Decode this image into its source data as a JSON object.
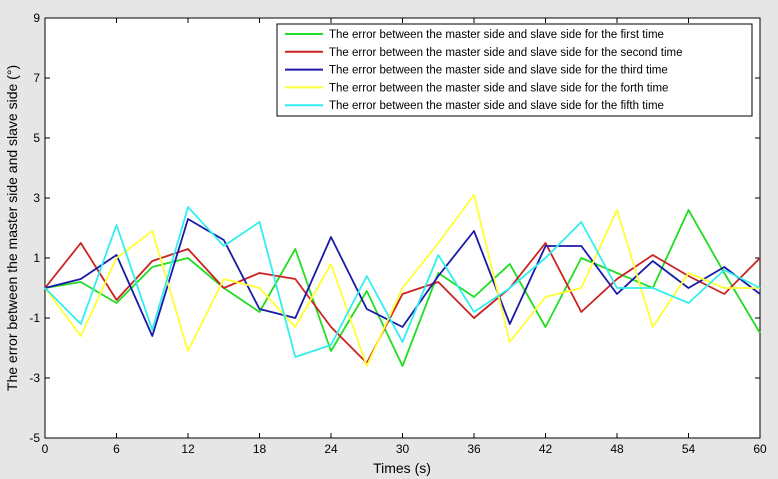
{
  "chart_data": {
    "type": "line",
    "xlabel": "Times (s)",
    "ylabel": "The error between the master side and slave side (°)",
    "xlim": [
      0,
      60
    ],
    "ylim": [
      -5,
      9
    ],
    "xticks": [
      0,
      6,
      12,
      18,
      24,
      30,
      36,
      42,
      48,
      54,
      60
    ],
    "yticks": [
      -5,
      -3,
      -1,
      1,
      3,
      5,
      7,
      9
    ],
    "grid": false,
    "legend_position": "top-right",
    "x": [
      0,
      3,
      6,
      9,
      12,
      15,
      18,
      21,
      24,
      27,
      30,
      33,
      36,
      39,
      42,
      45,
      48,
      51,
      54,
      57,
      60
    ],
    "series": [
      {
        "name": "The error between the master side and slave side for the first time",
        "color": "#22dd22",
        "values": [
          0.0,
          0.2,
          -0.5,
          0.7,
          1.0,
          0.0,
          -0.8,
          1.3,
          -2.1,
          -0.1,
          -2.6,
          0.5,
          -0.3,
          0.8,
          -1.3,
          1.0,
          0.5,
          0.0,
          2.6,
          0.5,
          -1.5
        ]
      },
      {
        "name": "The error between the master side and slave side for the second time",
        "color": "#cc2222",
        "values": [
          0.0,
          1.5,
          -0.4,
          0.9,
          1.3,
          0.0,
          0.5,
          0.3,
          -1.3,
          -2.5,
          -0.2,
          0.2,
          -1.0,
          0.0,
          1.5,
          -0.8,
          0.3,
          1.1,
          0.4,
          -0.2,
          1.0
        ]
      },
      {
        "name": "The error between the master side and slave side for the third time",
        "color": "#1a1aa8",
        "values": [
          0.0,
          0.3,
          1.1,
          -1.6,
          2.3,
          1.6,
          -0.7,
          -1.0,
          1.7,
          -0.7,
          -1.3,
          0.4,
          1.9,
          -1.2,
          1.4,
          1.4,
          -0.2,
          0.9,
          0.0,
          0.7,
          -0.2
        ]
      },
      {
        "name": "The error between the master side and slave side for the forth time",
        "color": "#ffff33",
        "values": [
          0.0,
          -1.6,
          1.0,
          1.9,
          -2.1,
          0.3,
          0.0,
          -1.3,
          0.8,
          -2.6,
          0.0,
          1.5,
          3.1,
          -1.8,
          -0.3,
          0.0,
          2.6,
          -1.3,
          0.5,
          0.0,
          0.0
        ]
      },
      {
        "name": "The error between the master side and slave side for the fifth time",
        "color": "#33eeee",
        "values": [
          0.0,
          -1.2,
          2.1,
          -1.4,
          2.7,
          1.4,
          2.2,
          -2.3,
          -1.9,
          0.4,
          -1.8,
          1.1,
          -0.8,
          0.0,
          1.0,
          2.2,
          0.0,
          0.0,
          -0.5,
          0.6,
          0.0
        ]
      }
    ]
  }
}
